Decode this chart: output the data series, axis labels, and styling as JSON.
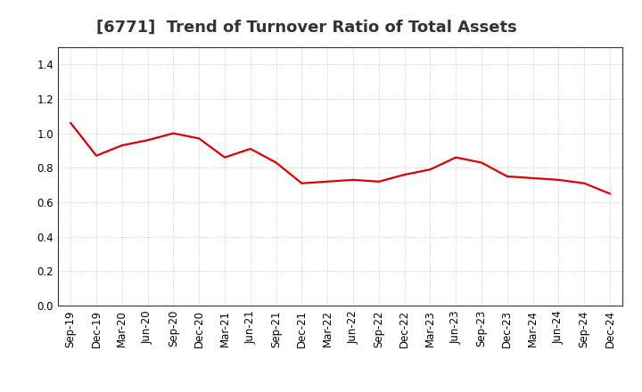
{
  "title": "[6771]  Trend of Turnover Ratio of Total Assets",
  "x_labels": [
    "Sep-19",
    "Dec-19",
    "Mar-20",
    "Jun-20",
    "Sep-20",
    "Dec-20",
    "Mar-21",
    "Jun-21",
    "Sep-21",
    "Dec-21",
    "Mar-22",
    "Jun-22",
    "Sep-22",
    "Dec-22",
    "Mar-23",
    "Jun-23",
    "Sep-23",
    "Dec-23",
    "Mar-24",
    "Jun-24",
    "Sep-24",
    "Dec-24"
  ],
  "y_values": [
    1.06,
    0.87,
    0.93,
    0.96,
    1.0,
    0.97,
    0.86,
    0.91,
    0.83,
    0.71,
    0.72,
    0.73,
    0.72,
    0.76,
    0.79,
    0.86,
    0.83,
    0.75,
    0.74,
    0.73,
    0.71,
    0.65
  ],
  "line_color": "#dd0000",
  "line_width": 1.6,
  "ylim": [
    0.0,
    1.5
  ],
  "yticks": [
    0.0,
    0.2,
    0.4,
    0.6,
    0.8,
    1.0,
    1.2,
    1.4
  ],
  "grid_color": "#bbbbbb",
  "background_color": "#ffffff",
  "title_fontsize": 13,
  "tick_fontsize": 8.5,
  "title_color": "#333333"
}
